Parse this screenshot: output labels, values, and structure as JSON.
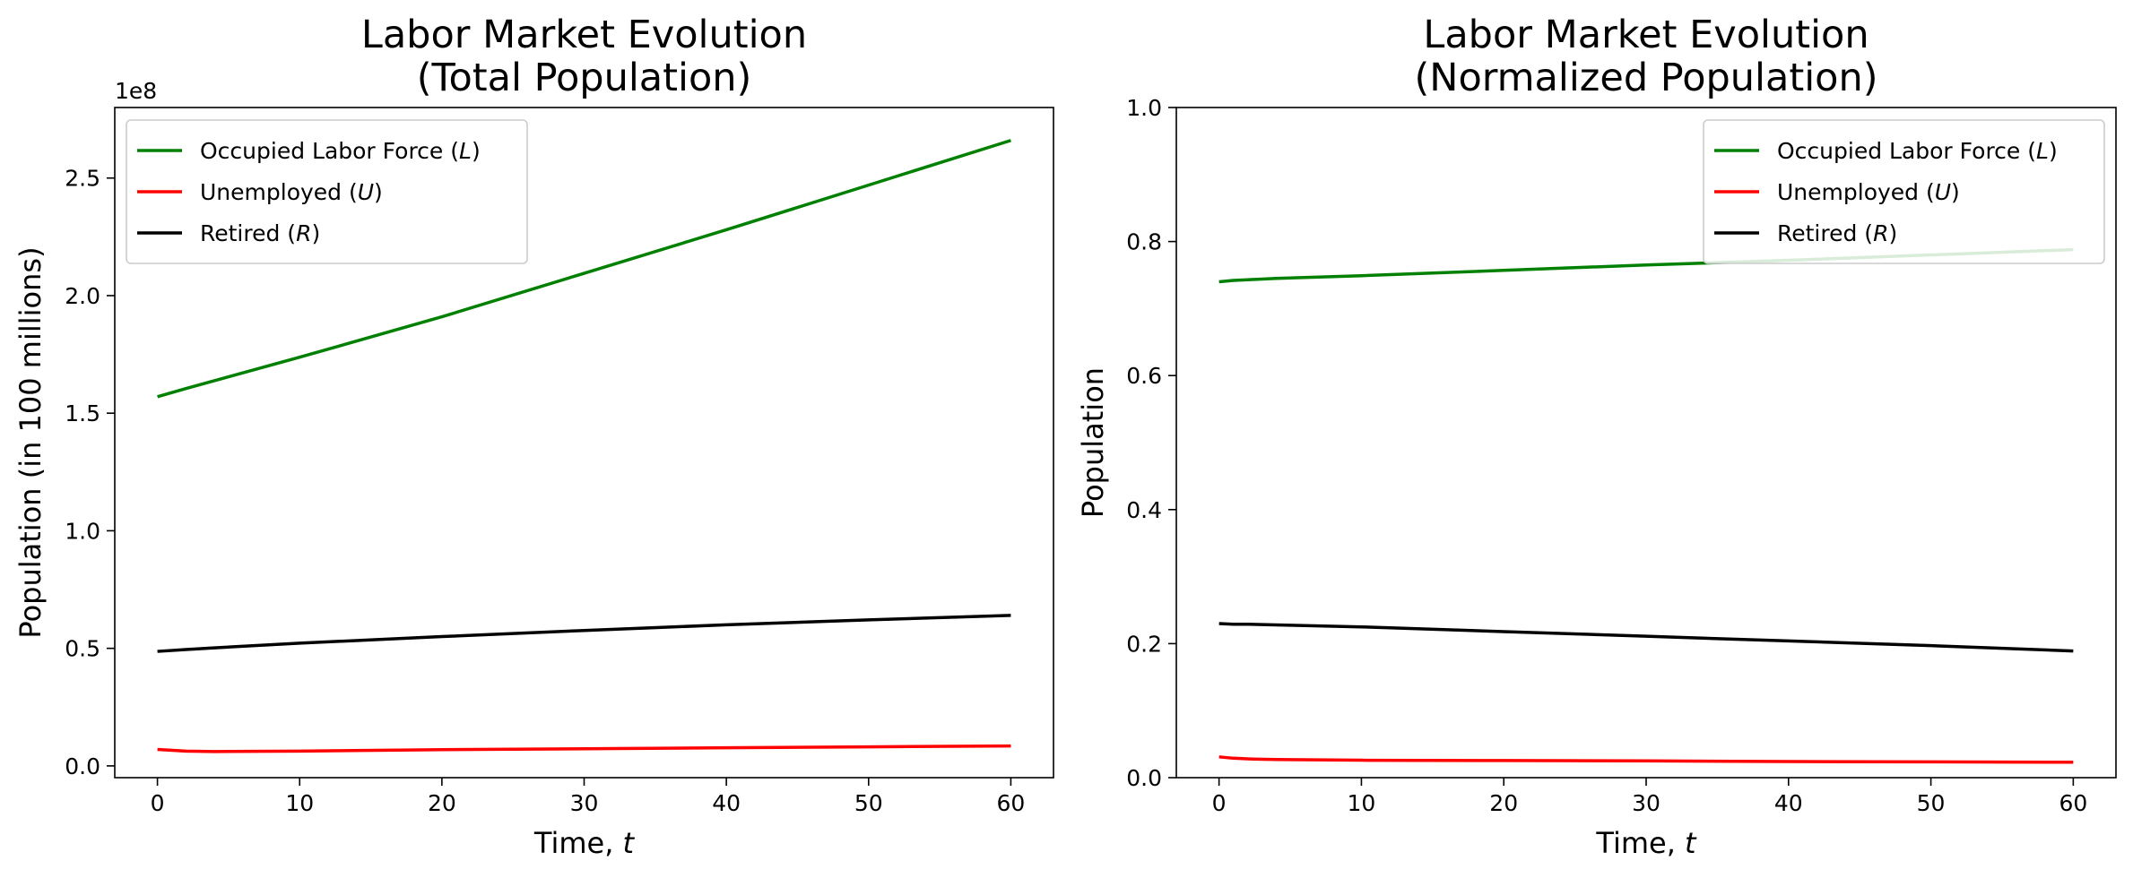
{
  "chart_data": [
    {
      "type": "line",
      "title_lines": [
        "Labor Market Evolution",
        "(Total Population)"
      ],
      "xlabel": "Time, ",
      "xlabel_var": "t",
      "ylabel": "Population (in 100 millions)",
      "offset_text": "1e8",
      "xlim": [
        -3,
        63
      ],
      "ylim": [
        -5000000,
        280000000
      ],
      "xticks": [
        0,
        10,
        20,
        30,
        40,
        50,
        60
      ],
      "yticks": [
        0,
        50000000,
        100000000,
        150000000,
        200000000,
        250000000
      ],
      "ytick_labels": [
        "0.0",
        "0.5",
        "1.0",
        "1.5",
        "2.0",
        "2.5"
      ],
      "legend_position": "upper left",
      "x": [
        0,
        2,
        4,
        10,
        20,
        30,
        40,
        50,
        60
      ],
      "series": [
        {
          "name": "Occupied Labor Force (",
          "var": "L",
          "color": "#008000",
          "values": [
            157000000,
            160500000,
            163800000,
            173800000,
            191000000,
            209500000,
            228000000,
            247000000,
            266000000
          ]
        },
        {
          "name": "Unemployed (",
          "var": "U",
          "color": "#ff0000",
          "values": [
            7000000,
            6300000,
            6100000,
            6300000,
            6900000,
            7300000,
            7700000,
            8100000,
            8500000
          ]
        },
        {
          "name": "Retired (",
          "var": "R",
          "color": "#000000",
          "values": [
            48700000,
            49500000,
            50200000,
            52200000,
            55000000,
            57600000,
            60000000,
            62100000,
            64000000
          ]
        }
      ]
    },
    {
      "type": "line",
      "title_lines": [
        "Labor Market Evolution",
        "(Normalized Population)"
      ],
      "xlabel": "Time, ",
      "xlabel_var": "t",
      "ylabel": "Population",
      "xlim": [
        -3,
        63
      ],
      "ylim": [
        0,
        1
      ],
      "xticks": [
        0,
        10,
        20,
        30,
        40,
        50,
        60
      ],
      "yticks": [
        0,
        0.2,
        0.4,
        0.6,
        0.8,
        1.0
      ],
      "ytick_labels": [
        "0.0",
        "0.2",
        "0.4",
        "0.6",
        "0.8",
        "1.0"
      ],
      "legend_position": "upper right",
      "x": [
        0,
        1,
        2,
        4,
        10,
        20,
        30,
        40,
        50,
        60
      ],
      "series": [
        {
          "name": "Occupied Labor Force (",
          "var": "L",
          "color": "#008000",
          "values": [
            0.74,
            0.742,
            0.743,
            0.745,
            0.749,
            0.757,
            0.765,
            0.772,
            0.78,
            0.788
          ]
        },
        {
          "name": "Unemployed (",
          "var": "U",
          "color": "#ff0000",
          "values": [
            0.031,
            0.029,
            0.028,
            0.027,
            0.026,
            0.0255,
            0.025,
            0.024,
            0.0235,
            0.023
          ]
        },
        {
          "name": "Retired (",
          "var": "R",
          "color": "#000000",
          "values": [
            0.23,
            0.229,
            0.229,
            0.228,
            0.225,
            0.218,
            0.211,
            0.204,
            0.197,
            0.189
          ]
        }
      ]
    }
  ]
}
